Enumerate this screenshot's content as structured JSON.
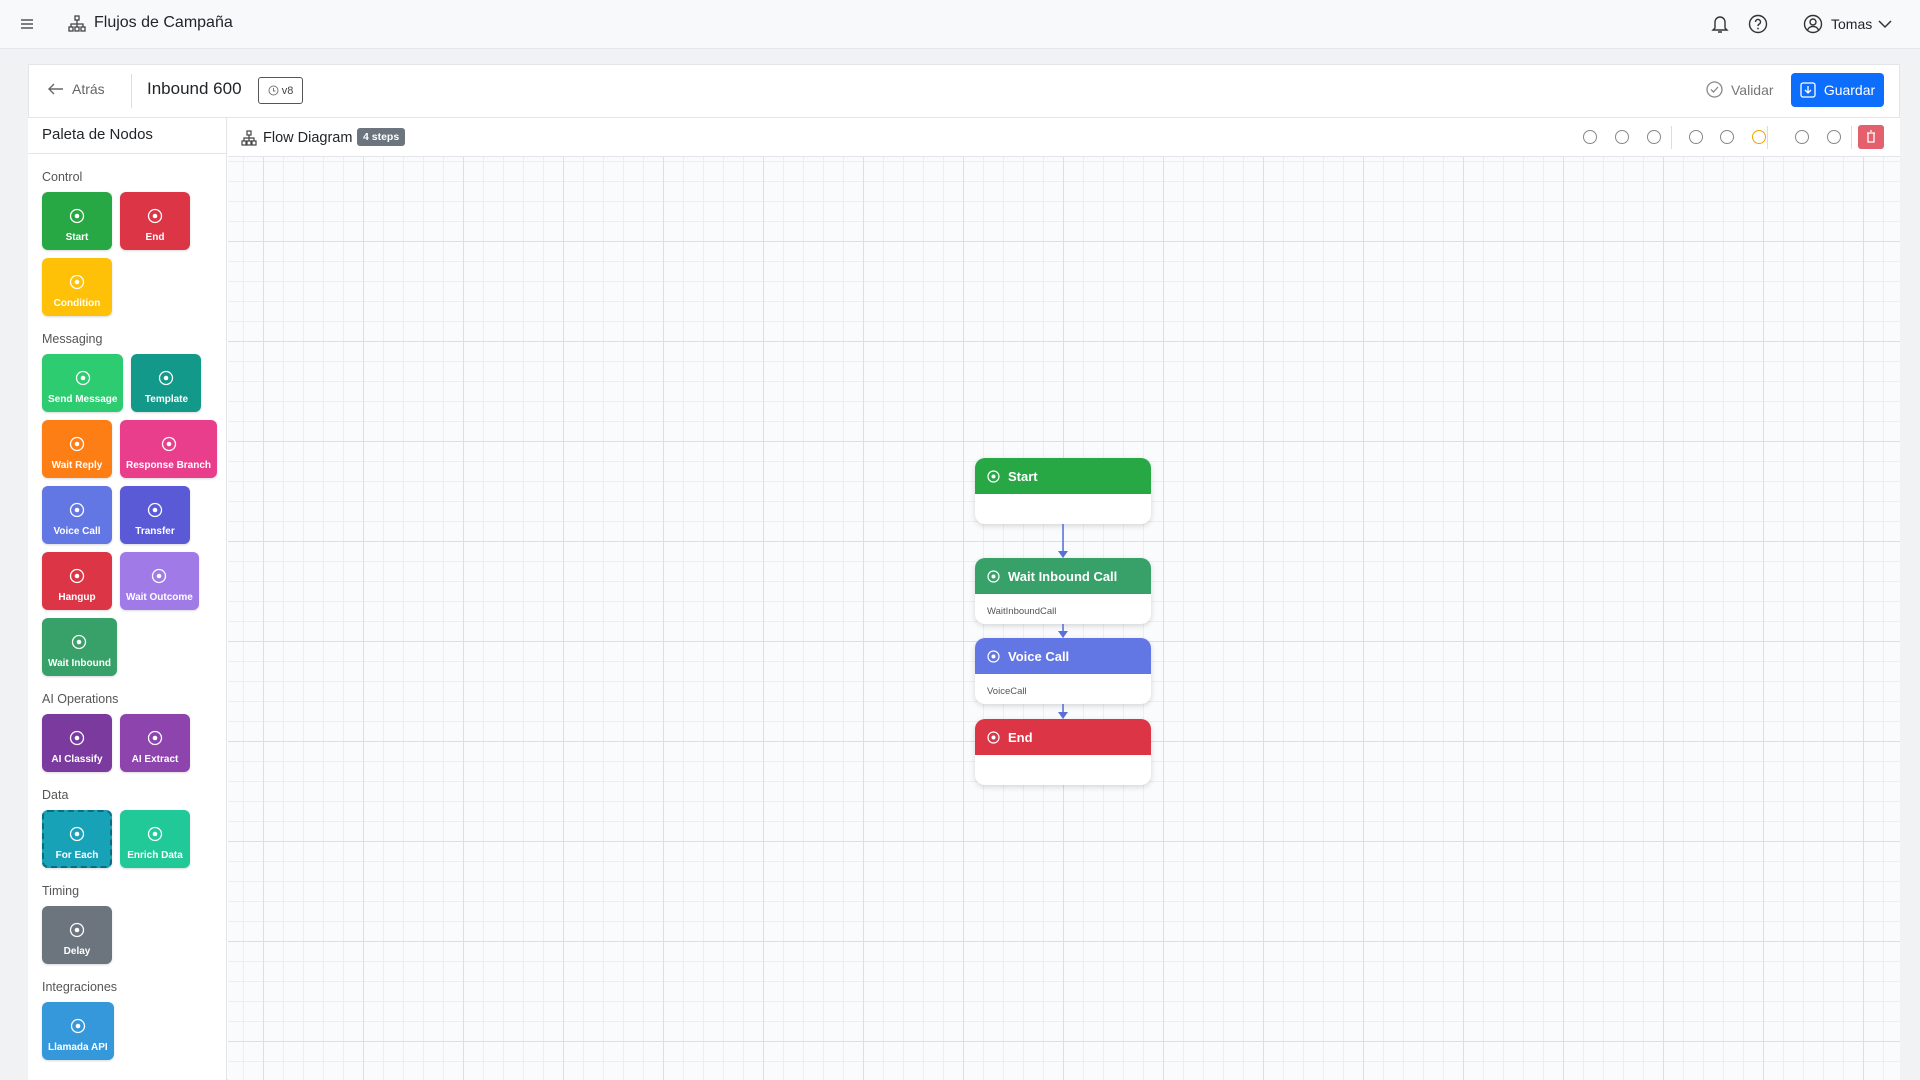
{
  "app_title": "Flujos de Campaña",
  "user_name": "Tomas",
  "back_label": "Atrás",
  "flow_name": "Inbound 600",
  "version": "v8",
  "validate_label": "Validar",
  "save_label": "Guardar",
  "palette": {
    "title": "Paleta de Nodos",
    "sections": [
      {
        "title": "Control",
        "items": [
          {
            "label": "Start",
            "color": "#28a745"
          },
          {
            "label": "End",
            "color": "#dc3545"
          },
          {
            "label": "Condition",
            "color": "#ffc107"
          }
        ]
      },
      {
        "title": "Messaging",
        "items": [
          {
            "label": "Send Message",
            "color": "#2ecc71"
          },
          {
            "label": "Template",
            "color": "#12998a"
          },
          {
            "label": "Wait Reply",
            "color": "#fd7e14"
          },
          {
            "label": "Response Branch",
            "color": "#e83e8c"
          },
          {
            "label": "Voice Call",
            "color": "#6377e4"
          },
          {
            "label": "Transfer",
            "color": "#5a5ad6"
          },
          {
            "label": "Hangup",
            "color": "#dc3545"
          },
          {
            "label": "Wait Outcome",
            "color": "#a07ae6"
          },
          {
            "label": "Wait Inbound",
            "color": "#38a169"
          }
        ]
      },
      {
        "title": "AI Operations",
        "items": [
          {
            "label": "AI Classify",
            "color": "#7b3b9e"
          },
          {
            "label": "AI Extract",
            "color": "#8e44ad"
          }
        ]
      },
      {
        "title": "Data",
        "items": [
          {
            "label": "For Each",
            "color": "#17a2b8"
          },
          {
            "label": "Enrich Data",
            "color": "#20c997"
          }
        ]
      },
      {
        "title": "Timing",
        "items": [
          {
            "label": "Delay",
            "color": "#6c757d"
          }
        ]
      },
      {
        "title": "Integraciones",
        "items": [
          {
            "label": "Llamada API",
            "color": "#3498db"
          }
        ]
      }
    ]
  },
  "canvas": {
    "title": "Flow Diagram",
    "steps_badge": "4 steps",
    "nodes": [
      {
        "title": "Start",
        "color": "#28a745"
      },
      {
        "title": "Wait Inbound Call",
        "subtitle": "WaitInboundCall",
        "color": "#38a169"
      },
      {
        "title": "Voice Call",
        "subtitle": "VoiceCall",
        "color": "#6377e4"
      },
      {
        "title": "End",
        "color": "#dc3545"
      }
    ]
  }
}
